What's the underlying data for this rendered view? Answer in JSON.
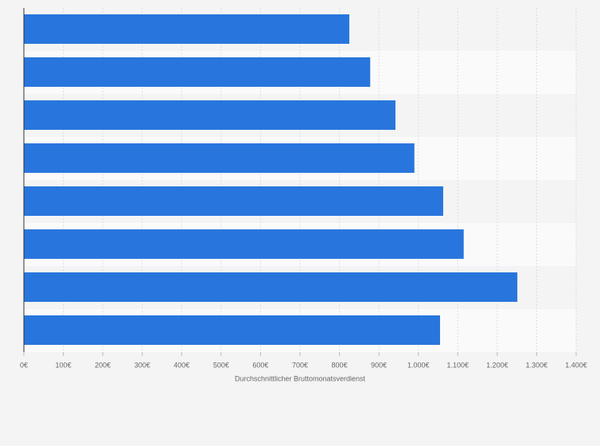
{
  "chart_data": {
    "type": "barh",
    "x_label": "Durchschnittlicher Bruttomonatsverdienst",
    "categories": [
      null,
      null,
      null,
      null,
      null,
      null,
      null,
      null
    ],
    "values": [
      825,
      878,
      942,
      990,
      1063,
      1115,
      1251,
      1055
    ],
    "color": "#2876dd",
    "xlim": [
      0,
      1400
    ],
    "xticks": [
      {
        "value": 0,
        "label": "0€"
      },
      {
        "value": 100,
        "label": "100€"
      },
      {
        "value": 200,
        "label": "200€"
      },
      {
        "value": 300,
        "label": "300€"
      },
      {
        "value": 400,
        "label": "400€"
      },
      {
        "value": 500,
        "label": "500€"
      },
      {
        "value": 600,
        "label": "600€"
      },
      {
        "value": 700,
        "label": "700€"
      },
      {
        "value": 800,
        "label": "800€"
      },
      {
        "value": 900,
        "label": "900€"
      },
      {
        "value": 1000,
        "label": "1.000€"
      },
      {
        "value": 1100,
        "label": "1.100€"
      },
      {
        "value": 1200,
        "label": "1.200€"
      },
      {
        "value": 1300,
        "label": "1.300€"
      },
      {
        "value": 1400,
        "label": "1.400€"
      }
    ],
    "grid": true
  }
}
